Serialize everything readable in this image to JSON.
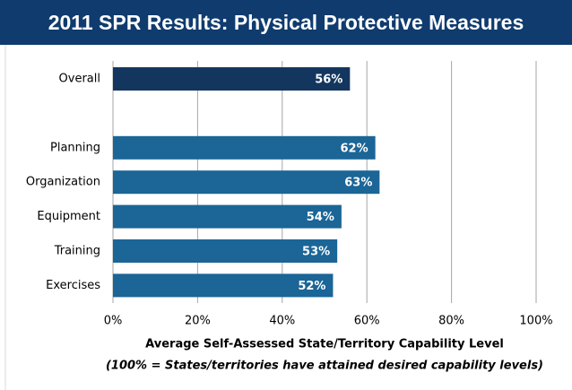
{
  "chart_data": {
    "type": "hbar",
    "title": "2011 SPR Results: Physical Protective Measures",
    "categories": [
      "Overall",
      null,
      "Planning",
      "Organization",
      "Equipment",
      "Training",
      "Exercises"
    ],
    "values": [
      56,
      null,
      62,
      63,
      54,
      53,
      52
    ],
    "value_labels": [
      "56%",
      null,
      "62%",
      "63%",
      "54%",
      "53%",
      "52%"
    ],
    "colors": [
      "#13365f",
      null,
      "#1b6597",
      "#1b6597",
      "#1b6597",
      "#1b6597",
      "#1b6597"
    ],
    "xlim": [
      0,
      100
    ],
    "xticks": [
      {
        "value": 0,
        "label": "0%"
      },
      {
        "value": 20,
        "label": "20%"
      },
      {
        "value": 40,
        "label": "40%"
      },
      {
        "value": 60,
        "label": "60%"
      },
      {
        "value": 80,
        "label": "80%"
      },
      {
        "value": 100,
        "label": "100%"
      }
    ],
    "grid": true,
    "xlabel": "Average Self-Assessed State/Territory Capability Level",
    "note": "(100% = States/territories  have attained desired capability levels)"
  }
}
